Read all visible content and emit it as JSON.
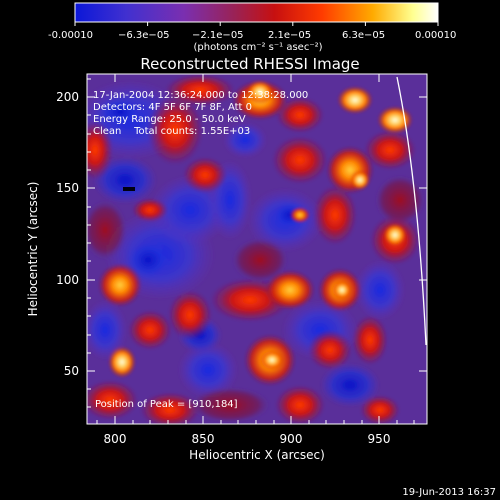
{
  "colorbar": {
    "tick_labels": [
      "-0.00010",
      "−6.3e−05",
      "−2.1e−05",
      "2.1e−05",
      "6.3e−05",
      "0.00010"
    ],
    "units": "(photons cm⁻² s⁻¹ asec⁻²)",
    "colors": [
      "#0b17d8",
      "#4030d0",
      "#7a2fb0",
      "#9a2255",
      "#c71010",
      "#ff3b00",
      "#ffaa00",
      "#ffff90",
      "#ffffff"
    ]
  },
  "plot": {
    "title": "Reconstructed RHESSI Image",
    "x_axis_label": "Heliocentric X (arcsec)",
    "y_axis_label": "Heliocentric Y (arcsec)",
    "x_ticks": [
      "800",
      "850",
      "900",
      "950"
    ],
    "y_ticks": [
      "50",
      "100",
      "150",
      "200"
    ],
    "x_range": [
      780,
      972
    ],
    "y_range": [
      22,
      215
    ]
  },
  "annotations": {
    "time_range": "17-Jan-2004 12:36:24.000 to 12:38:28.000",
    "detectors": "Detectors: 4F 5F 6F 7F 8F, Att 0",
    "energy": "Energy Range: 25.0 - 50.0 keV",
    "clean": "Clean    Total counts: 1.55E+03",
    "peak": "Position of Peak = [910,184]"
  },
  "footer": {
    "timestamp": "19-Jun-2013 16:37"
  }
}
